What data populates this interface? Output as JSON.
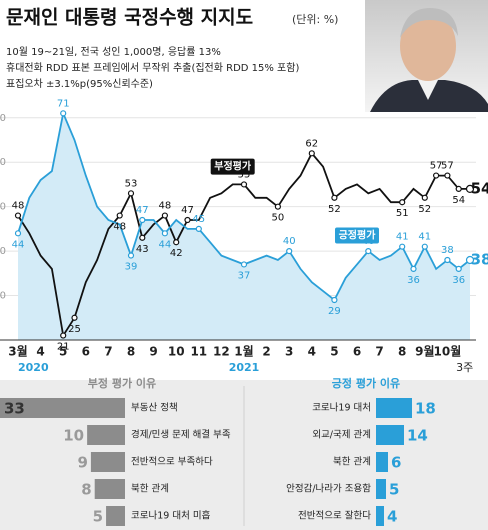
{
  "chart_data": [
    {
      "type": "line",
      "title": "문재인 대통령 국정수행 지지도",
      "unit": "(단위: %)",
      "notes": [
        "10월 19~21일, 전국 성인 1,000명, 응답률 13%",
        "휴대전화 RDD 표본 프레임에서 무작위 추출(집전화 RDD 15% 포함)",
        "표집오차 ±3.1%p(95%신뢰수준)"
      ],
      "categories": [
        "3월",
        null,
        "4",
        null,
        "5",
        null,
        "6",
        null,
        "7",
        null,
        "8",
        null,
        "9",
        null,
        "10",
        null,
        "11",
        null,
        "12",
        null,
        "1월",
        null,
        "2",
        null,
        "3",
        null,
        "4",
        null,
        "5",
        null,
        "6",
        null,
        "7",
        null,
        "8",
        null,
        "9월",
        null,
        "10월",
        null,
        null
      ],
      "year_labels": [
        "2020",
        "2021"
      ],
      "week_label": "3주",
      "ylim": [
        20,
        74
      ],
      "yticks": [
        30,
        40,
        50,
        60,
        70
      ],
      "grid": true,
      "series": [
        {
          "name": "부정평가",
          "color": "#111111",
          "values": [
            48,
            44,
            39,
            36,
            21,
            25,
            33,
            38,
            45,
            48,
            53,
            43,
            46,
            48,
            42,
            47,
            47,
            52,
            53,
            55,
            55,
            52,
            52,
            50,
            54,
            57,
            62,
            59,
            52,
            54,
            55,
            53,
            54,
            51,
            51,
            54,
            52,
            57,
            57,
            54,
            54
          ],
          "value_labels": [
            "48",
            null,
            null,
            null,
            "21",
            "25",
            null,
            null,
            null,
            "48",
            "53",
            "43",
            null,
            "48",
            "42",
            "47",
            null,
            null,
            null,
            null,
            "55",
            null,
            null,
            "50",
            null,
            null,
            "62",
            null,
            "52",
            null,
            null,
            null,
            null,
            null,
            "51",
            null,
            "52",
            "57",
            "57",
            "54",
            "54"
          ]
        },
        {
          "name": "긍정평가",
          "color": "#2a9fd8",
          "area": true,
          "values": [
            44,
            52,
            56,
            58,
            71,
            65,
            57,
            50,
            47,
            46,
            39,
            47,
            47,
            44,
            47,
            45,
            45,
            42,
            39,
            38,
            37,
            38,
            39,
            38,
            40,
            36,
            33,
            31,
            29,
            34,
            37,
            40,
            38,
            39,
            41,
            36,
            41,
            36,
            38,
            36,
            38
          ],
          "value_labels": [
            "44",
            null,
            null,
            null,
            "71",
            null,
            null,
            null,
            null,
            null,
            "39",
            "47",
            null,
            "44",
            null,
            null,
            "45",
            null,
            null,
            null,
            "37",
            null,
            null,
            null,
            "40",
            null,
            null,
            null,
            "29",
            null,
            null,
            "40",
            null,
            null,
            "41",
            "36",
            "41",
            null,
            "38",
            "36",
            "38"
          ]
        }
      ]
    },
    {
      "type": "hbar-left",
      "title": "부정 평가 이유",
      "color": "#8c8c8c",
      "categories": [
        "부동산 정책",
        "경제/민생 문제 해결 부족",
        "전반적으로 부족하다",
        "북한 관계",
        "코로나19 대처 미흡"
      ],
      "values": [
        33,
        10,
        9,
        8,
        5
      ],
      "xlim": [
        0,
        33
      ]
    },
    {
      "type": "hbar-right",
      "title": "긍정 평가 이유",
      "color": "#2a9fd8",
      "categories": [
        "코로나19 대처",
        "외교/국제 관계",
        "북한 관계",
        "안정감/나라가 조용함",
        "전반적으로 잘한다"
      ],
      "values": [
        18,
        14,
        6,
        5,
        4
      ],
      "xlim": [
        0,
        56
      ]
    }
  ]
}
